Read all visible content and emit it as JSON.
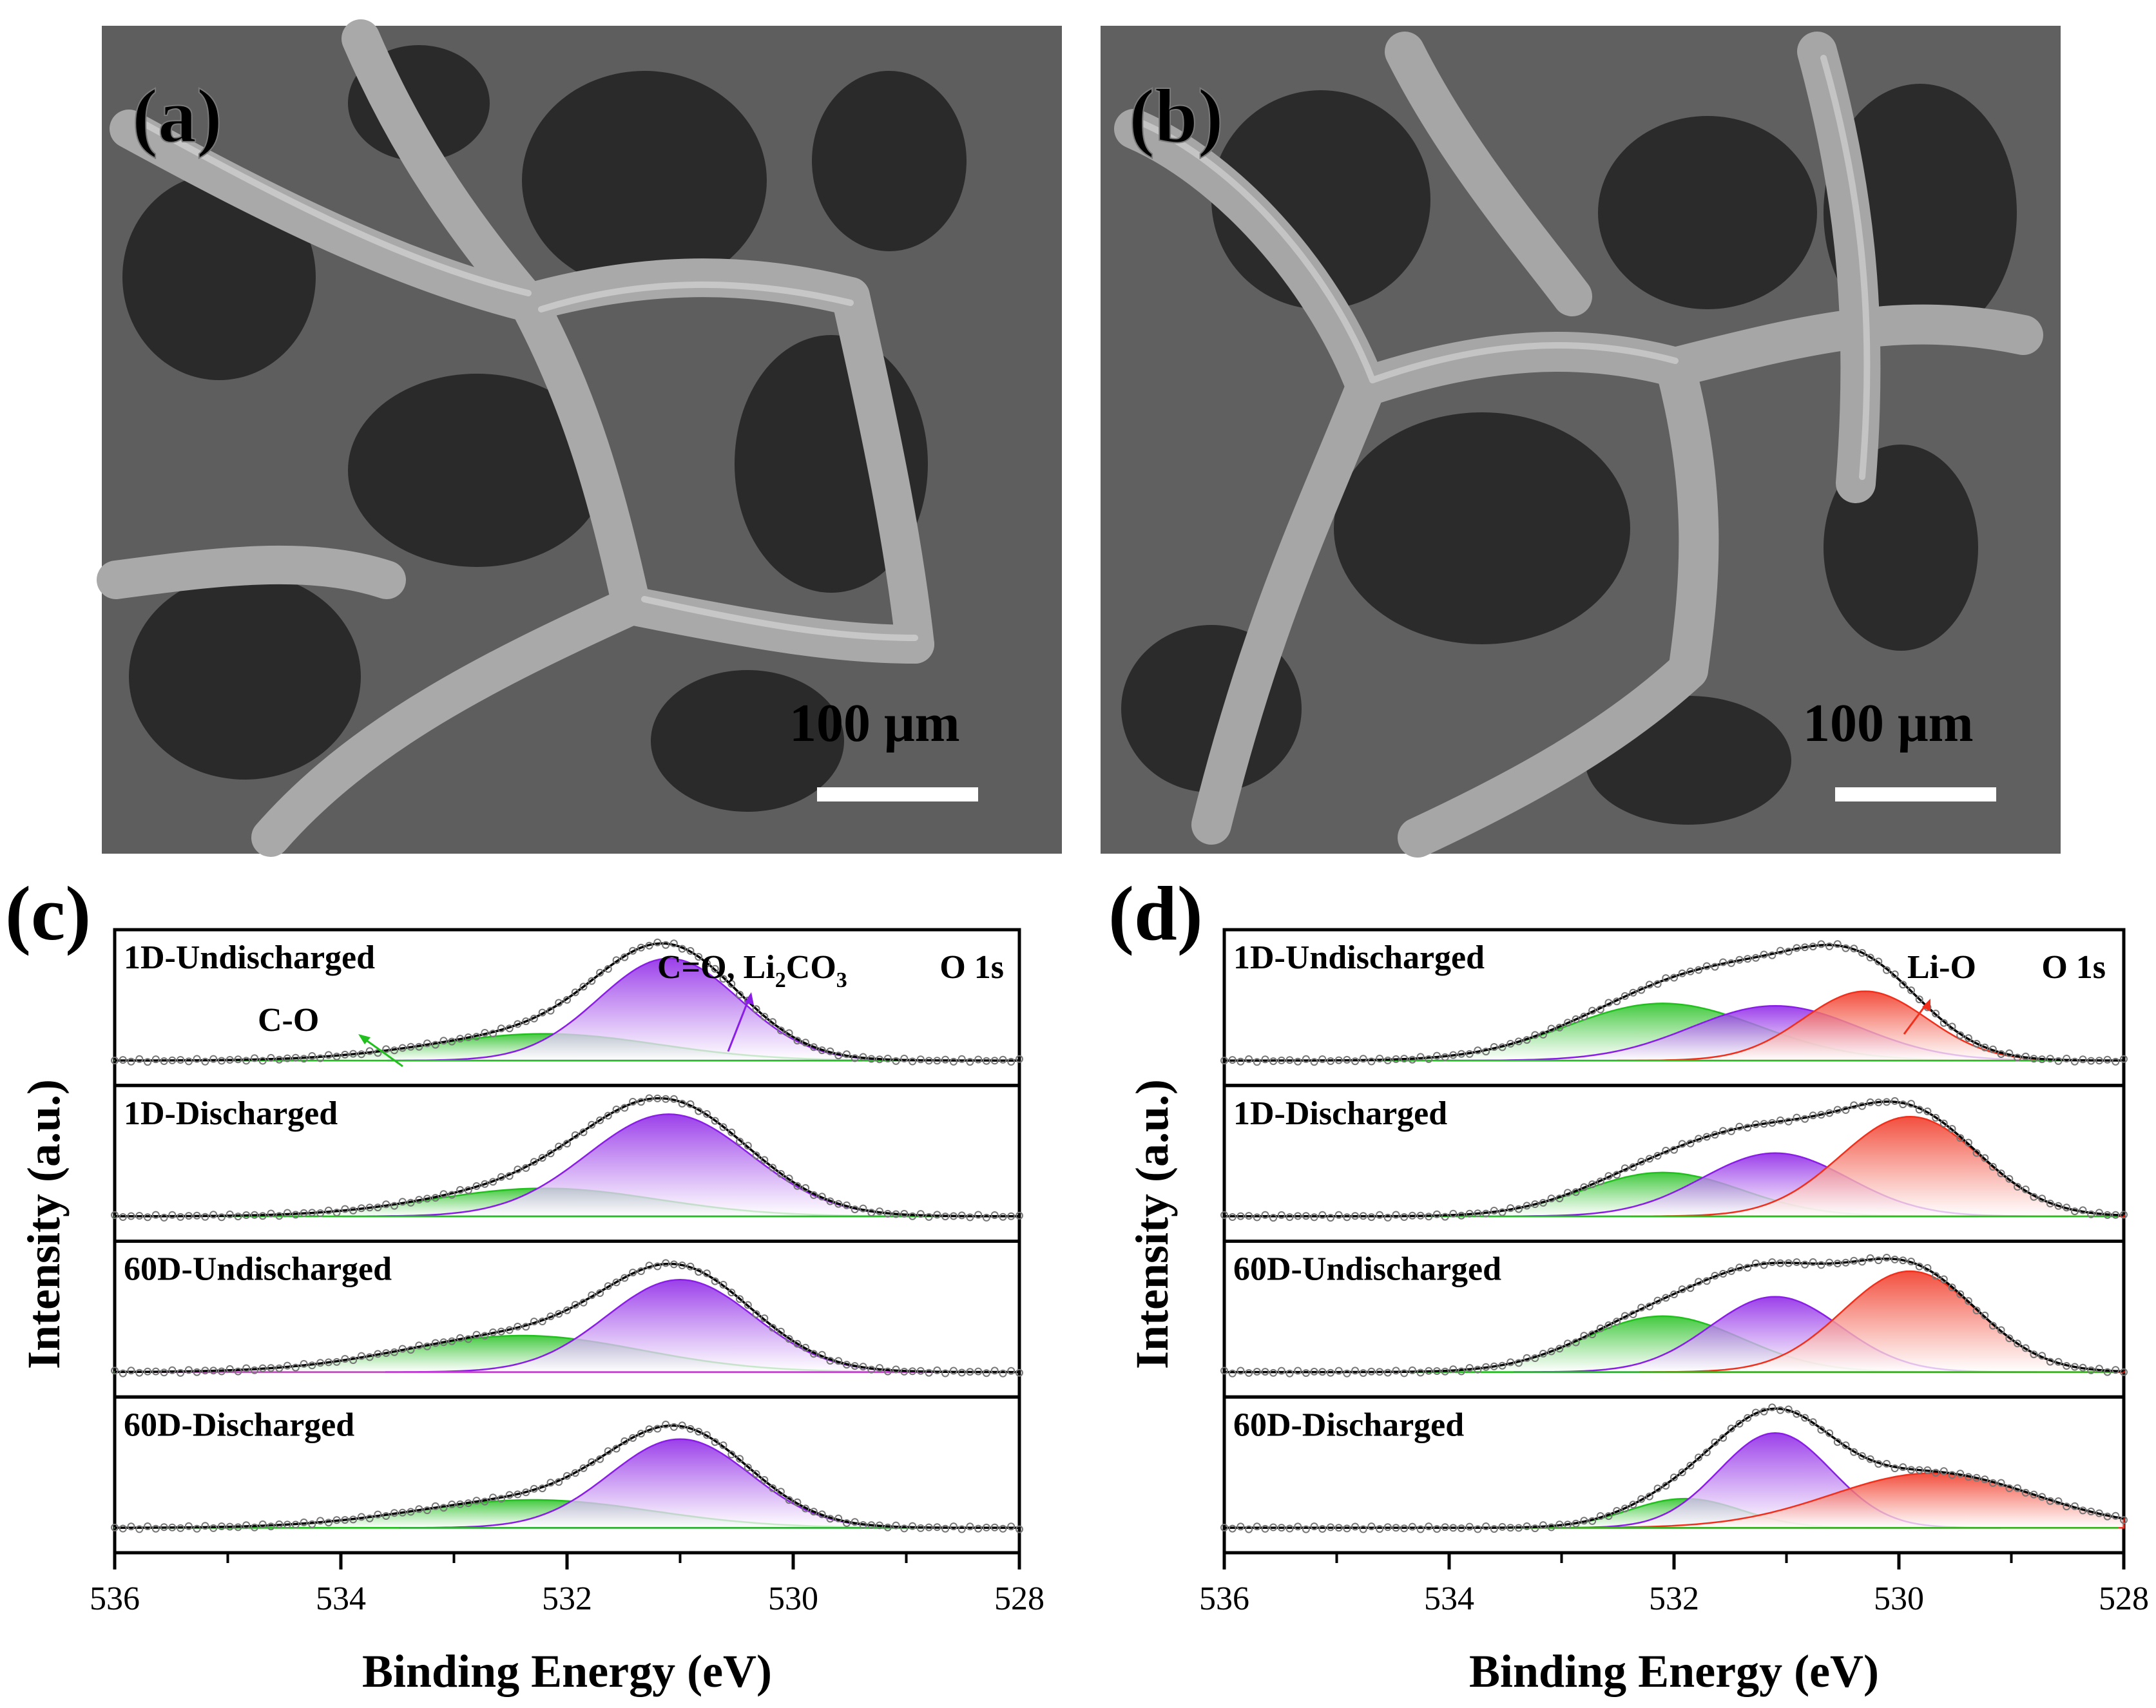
{
  "panels": {
    "a": {
      "label": "(a)",
      "scale_bar_text": "100 μm"
    },
    "b": {
      "label": "(b)",
      "scale_bar_text": "100 μm"
    },
    "c": {
      "label": "(c)"
    },
    "d": {
      "label": "(d)"
    }
  },
  "colors": {
    "green": "#22c01e",
    "purple": "#8a1ee6",
    "red": "#f0301c",
    "fit": "#000000",
    "data_marker": "#777777",
    "baseline_magenta": "#d040d0"
  },
  "chart_data": [
    {
      "type": "line",
      "panel": "(c)",
      "xlabel": "Binding Energy (eV)",
      "ylabel": "Intensity (a.u.)",
      "xlim": [
        536,
        528
      ],
      "x_reversed": true,
      "xticks": [
        536,
        534,
        532,
        530,
        528
      ],
      "annotations": {
        "core_level": "O 1s",
        "green_label": "C-O",
        "purple_label_main": "C=O, Li",
        "purple_sub_1": "2",
        "purple_mid": "CO",
        "purple_sub_2": "3"
      },
      "subplots": [
        {
          "name": "1D-Undischarged",
          "peaks": [
            {
              "component": "C-O",
              "center": 532.2,
              "height": 0.22,
              "sigma": 1.0
            },
            {
              "component": "C=O, Li2CO3",
              "center": 531.1,
              "height": 0.84,
              "sigma": 0.62
            }
          ]
        },
        {
          "name": "1D-Discharged",
          "peaks": [
            {
              "component": "C-O",
              "center": 532.2,
              "height": 0.23,
              "sigma": 1.0
            },
            {
              "component": "C=O, Li2CO3",
              "center": 531.1,
              "height": 0.84,
              "sigma": 0.72
            }
          ]
        },
        {
          "name": "60D-Undischarged",
          "peaks": [
            {
              "component": "C-O",
              "center": 532.4,
              "height": 0.3,
              "sigma": 1.05
            },
            {
              "component": "C=O, Li2CO3",
              "center": 531.0,
              "height": 0.76,
              "sigma": 0.65
            }
          ]
        },
        {
          "name": "60D-Discharged",
          "peaks": [
            {
              "component": "C-O",
              "center": 532.3,
              "height": 0.23,
              "sigma": 1.05
            },
            {
              "component": "C=O, Li2CO3",
              "center": 531.0,
              "height": 0.73,
              "sigma": 0.62
            }
          ]
        }
      ]
    },
    {
      "type": "line",
      "panel": "(d)",
      "xlabel": "Binding Energy (eV)",
      "ylabel": "Intensity (a.u.)",
      "xlim": [
        536,
        528
      ],
      "x_reversed": true,
      "xticks": [
        536,
        534,
        532,
        530,
        528
      ],
      "annotations": {
        "core_level": "O 1s",
        "red_label": "Li-O"
      },
      "subplots": [
        {
          "name": "1D-Undischarged",
          "peaks": [
            {
              "component": "C-O",
              "center": 532.1,
              "height": 0.47,
              "sigma": 0.85
            },
            {
              "component": "C=O, Li2CO3",
              "center": 531.1,
              "height": 0.45,
              "sigma": 0.75
            },
            {
              "component": "Li-O",
              "center": 530.3,
              "height": 0.57,
              "sigma": 0.55
            }
          ]
        },
        {
          "name": "1D-Discharged",
          "peaks": [
            {
              "component": "C-O",
              "center": 532.1,
              "height": 0.36,
              "sigma": 0.7
            },
            {
              "component": "C=O, Li2CO3",
              "center": 531.1,
              "height": 0.52,
              "sigma": 0.65
            },
            {
              "component": "Li-O",
              "center": 529.9,
              "height": 0.82,
              "sigma": 0.62
            }
          ]
        },
        {
          "name": "60D-Undischarged",
          "peaks": [
            {
              "component": "C-O",
              "center": 532.1,
              "height": 0.46,
              "sigma": 0.7
            },
            {
              "component": "C=O, Li2CO3",
              "center": 531.1,
              "height": 0.62,
              "sigma": 0.58
            },
            {
              "component": "Li-O",
              "center": 529.9,
              "height": 0.83,
              "sigma": 0.6
            }
          ]
        },
        {
          "name": "60D-Discharged",
          "peaks": [
            {
              "component": "C-O",
              "center": 531.9,
              "height": 0.24,
              "sigma": 0.5
            },
            {
              "component": "C=O, Li2CO3",
              "center": 531.1,
              "height": 0.78,
              "sigma": 0.5
            },
            {
              "component": "Li-O",
              "center": 529.7,
              "height": 0.45,
              "sigma": 0.9
            }
          ]
        }
      ]
    }
  ]
}
